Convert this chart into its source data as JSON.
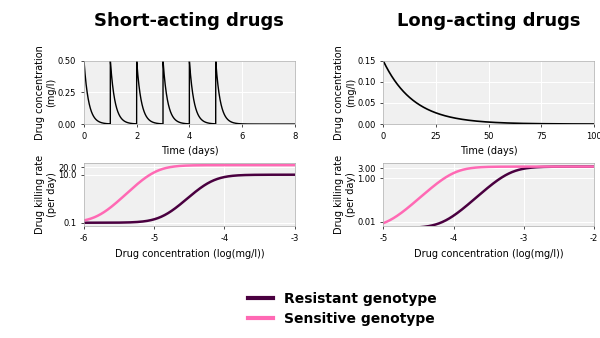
{
  "col_title_left": "Short-acting drugs",
  "col_title_right": "Long-acting drugs",
  "title_fontsize": 13,
  "bg_color": "#ffffff",
  "panel_bg": "#f0f0f0",
  "grid_color": "#ffffff",
  "top_left": {
    "xlabel": "Time (days)",
    "ylabel": "Drug concentration\n(mg/l)",
    "xlim": [
      0,
      8
    ],
    "ylim": [
      0,
      0.5
    ],
    "yticks": [
      0.0,
      0.25,
      0.5
    ],
    "ytick_labels": [
      "0.00",
      "0.25",
      "0.50"
    ],
    "xticks": [
      0,
      2,
      4,
      6,
      8
    ],
    "dose_times": [
      0,
      1,
      2,
      3,
      4,
      5
    ],
    "dose_amount": 0.5,
    "half_life_days": 0.12
  },
  "top_right": {
    "xlabel": "Time (days)",
    "ylabel": "Drug concentration\n(mg/l)",
    "xlim": [
      0,
      100
    ],
    "ylim": [
      0,
      0.15
    ],
    "yticks": [
      0.0,
      0.05,
      0.1,
      0.15
    ],
    "ytick_labels": [
      "0.00",
      "0.05",
      "0.10",
      "0.15"
    ],
    "xticks": [
      0,
      25,
      50,
      75,
      100
    ],
    "dose_amount": 0.15,
    "half_life_days": 10
  },
  "bottom_left": {
    "xlabel": "Drug concentration (log(mg/l))",
    "ylabel": "Drug killing rate\n(per day)",
    "xlim": [
      -6,
      -3
    ],
    "xticks": [
      -6,
      -5,
      -4,
      -3
    ],
    "ytick_labels": [
      "0.1",
      "10.0",
      "20.0"
    ],
    "ytick_vals": [
      0.1,
      10.0,
      20.0
    ],
    "ylim": [
      0.07,
      30.0
    ],
    "resistant_emax": 10.0,
    "resistant_ec50_log": -4.2,
    "resistant_hill": 3,
    "sensitive_emax": 25.0,
    "sensitive_ec50_log": -5.0,
    "sensitive_hill": 3,
    "emin": 0.1
  },
  "bottom_right": {
    "xlabel": "Drug concentration (log(mg/l))",
    "ylabel": "Drug killing rate\n(per day)",
    "xlim": [
      -5,
      -2
    ],
    "xticks": [
      -5,
      -4,
      -3,
      -2
    ],
    "ytick_labels": [
      "0.01",
      "1.00",
      "3.00"
    ],
    "ytick_vals": [
      0.01,
      1.0,
      3.0
    ],
    "ylim": [
      0.006,
      5.0
    ],
    "resistant_emax": 3.5,
    "resistant_ec50_log": -3.2,
    "resistant_hill": 3,
    "sensitive_emax": 3.5,
    "sensitive_ec50_log": -4.0,
    "sensitive_hill": 3,
    "emin": 0.005
  },
  "resistant_color": "#4a0040",
  "sensitive_color": "#ff69b4",
  "line_width": 1.8,
  "legend_fontsize": 10
}
